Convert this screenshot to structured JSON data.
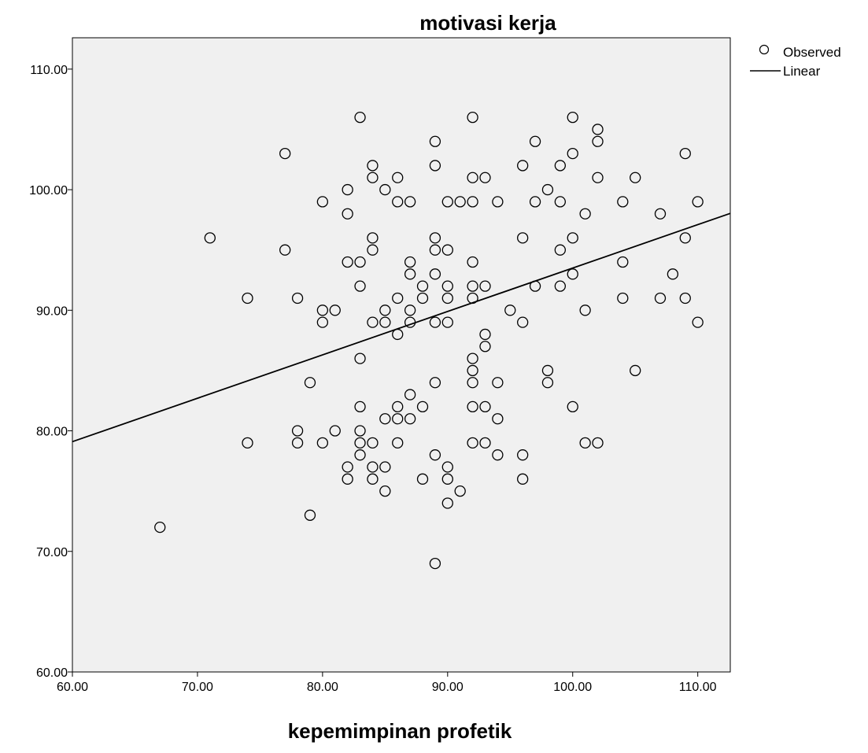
{
  "chart_data": {
    "type": "scatter",
    "title": "motivasi kerja",
    "xlabel": "kepemimpinan profetik",
    "ylabel": "",
    "xlim": [
      60,
      112.6
    ],
    "ylim": [
      60,
      112.6
    ],
    "x_ticks": [
      "60.00",
      "70.00",
      "80.00",
      "90.00",
      "100.00",
      "110.00"
    ],
    "y_ticks": [
      "60.00",
      "70.00",
      "80.00",
      "90.00",
      "100.00",
      "110.00"
    ],
    "grid": false,
    "legend": {
      "position": "top-right",
      "entries": [
        {
          "label": "Observed",
          "marker": "circle"
        },
        {
          "label": "Linear",
          "marker": "line"
        }
      ]
    },
    "fit_line": {
      "name": "Linear",
      "intercept": 57.5,
      "slope": 0.36
    },
    "series": [
      {
        "name": "Observed",
        "points": [
          [
            67,
            72
          ],
          [
            71,
            96
          ],
          [
            74,
            91
          ],
          [
            74,
            79
          ],
          [
            77,
            103
          ],
          [
            77,
            95
          ],
          [
            78,
            91
          ],
          [
            78,
            80
          ],
          [
            78,
            79
          ],
          [
            79,
            84
          ],
          [
            79,
            73
          ],
          [
            80,
            99
          ],
          [
            80,
            90
          ],
          [
            80,
            89
          ],
          [
            80,
            79
          ],
          [
            81,
            90
          ],
          [
            81,
            80
          ],
          [
            82,
            100
          ],
          [
            82,
            98
          ],
          [
            82,
            94
          ],
          [
            82,
            77
          ],
          [
            82,
            76
          ],
          [
            83,
            106
          ],
          [
            83,
            94
          ],
          [
            83,
            92
          ],
          [
            83,
            86
          ],
          [
            83,
            82
          ],
          [
            83,
            80
          ],
          [
            83,
            79
          ],
          [
            83,
            78
          ],
          [
            84,
            102
          ],
          [
            84,
            101
          ],
          [
            84,
            96
          ],
          [
            84,
            95
          ],
          [
            84,
            89
          ],
          [
            84,
            79
          ],
          [
            84,
            77
          ],
          [
            84,
            76
          ],
          [
            85,
            100
          ],
          [
            85,
            90
          ],
          [
            85,
            89
          ],
          [
            85,
            81
          ],
          [
            85,
            77
          ],
          [
            85,
            75
          ],
          [
            86,
            101
          ],
          [
            86,
            99
          ],
          [
            86,
            91
          ],
          [
            86,
            88
          ],
          [
            86,
            82
          ],
          [
            86,
            81
          ],
          [
            86,
            79
          ],
          [
            87,
            99
          ],
          [
            87,
            94
          ],
          [
            87,
            93
          ],
          [
            87,
            90
          ],
          [
            87,
            89
          ],
          [
            87,
            83
          ],
          [
            87,
            81
          ],
          [
            88,
            92
          ],
          [
            88,
            91
          ],
          [
            88,
            82
          ],
          [
            88,
            76
          ],
          [
            89,
            104
          ],
          [
            89,
            102
          ],
          [
            89,
            96
          ],
          [
            89,
            95
          ],
          [
            89,
            93
          ],
          [
            89,
            89
          ],
          [
            89,
            84
          ],
          [
            89,
            78
          ],
          [
            89,
            69
          ],
          [
            90,
            99
          ],
          [
            90,
            95
          ],
          [
            90,
            92
          ],
          [
            90,
            91
          ],
          [
            90,
            89
          ],
          [
            90,
            77
          ],
          [
            90,
            76
          ],
          [
            90,
            74
          ],
          [
            91,
            99
          ],
          [
            91,
            75
          ],
          [
            92,
            106
          ],
          [
            92,
            101
          ],
          [
            92,
            99
          ],
          [
            92,
            94
          ],
          [
            92,
            92
          ],
          [
            92,
            91
          ],
          [
            92,
            86
          ],
          [
            92,
            85
          ],
          [
            92,
            84
          ],
          [
            92,
            82
          ],
          [
            92,
            79
          ],
          [
            93,
            101
          ],
          [
            93,
            92
          ],
          [
            93,
            88
          ],
          [
            93,
            87
          ],
          [
            93,
            82
          ],
          [
            93,
            79
          ],
          [
            94,
            99
          ],
          [
            94,
            84
          ],
          [
            94,
            81
          ],
          [
            94,
            78
          ],
          [
            95,
            90
          ],
          [
            96,
            102
          ],
          [
            96,
            96
          ],
          [
            96,
            89
          ],
          [
            96,
            78
          ],
          [
            96,
            76
          ],
          [
            97,
            104
          ],
          [
            97,
            99
          ],
          [
            97,
            92
          ],
          [
            98,
            100
          ],
          [
            98,
            85
          ],
          [
            98,
            84
          ],
          [
            99,
            102
          ],
          [
            99,
            99
          ],
          [
            99,
            95
          ],
          [
            99,
            92
          ],
          [
            100,
            106
          ],
          [
            100,
            103
          ],
          [
            100,
            96
          ],
          [
            100,
            93
          ],
          [
            100,
            82
          ],
          [
            101,
            98
          ],
          [
            101,
            90
          ],
          [
            101,
            79
          ],
          [
            102,
            105
          ],
          [
            102,
            104
          ],
          [
            102,
            101
          ],
          [
            102,
            79
          ],
          [
            104,
            99
          ],
          [
            104,
            94
          ],
          [
            104,
            91
          ],
          [
            105,
            101
          ],
          [
            105,
            85
          ],
          [
            107,
            98
          ],
          [
            107,
            91
          ],
          [
            108,
            93
          ],
          [
            109,
            103
          ],
          [
            109,
            96
          ],
          [
            109,
            91
          ],
          [
            110,
            99
          ],
          [
            110,
            89
          ]
        ]
      }
    ]
  }
}
